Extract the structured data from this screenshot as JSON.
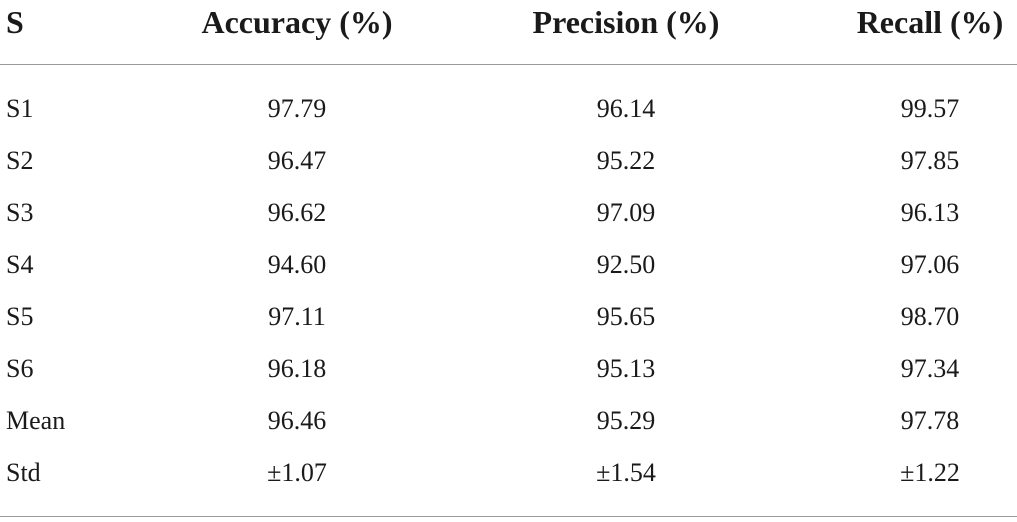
{
  "table": {
    "headers": [
      "S",
      "Accuracy (%)",
      "Precision (%)",
      "Recall (%)"
    ],
    "rows": [
      [
        "S1",
        "97.79",
        "96.14",
        "99.57"
      ],
      [
        "S2",
        "96.47",
        "95.22",
        "97.85"
      ],
      [
        "S3",
        "96.62",
        "97.09",
        "96.13"
      ],
      [
        "S4",
        "94.60",
        "92.50",
        "97.06"
      ],
      [
        "S5",
        "97.11",
        "95.65",
        "98.70"
      ],
      [
        "S6",
        "96.18",
        "95.13",
        "97.34"
      ],
      [
        "Mean",
        "96.46",
        "95.29",
        "97.78"
      ],
      [
        "Std",
        "±1.07",
        "±1.54",
        "±1.22"
      ]
    ]
  }
}
